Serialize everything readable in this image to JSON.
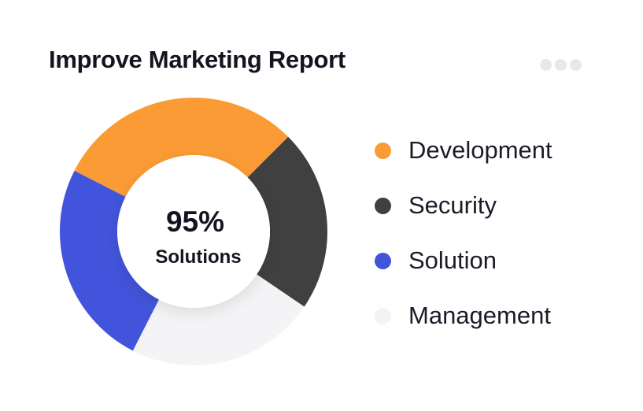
{
  "card": {
    "title": "Improve Marketing Report",
    "menu_icon": "more-horizontal-icon"
  },
  "chart_data": {
    "type": "donut",
    "title": "Improve Marketing Report",
    "center_value": "95%",
    "center_label": "Solutions",
    "legend_placement": "right",
    "series": [
      {
        "name": "Development",
        "value": 30,
        "color": "#FA9B35"
      },
      {
        "name": "Security",
        "value": 22,
        "color": "#404040"
      },
      {
        "name": "Management",
        "value": 23,
        "color": "#F4F4F6"
      },
      {
        "name": "Solution",
        "value": 25,
        "color": "#4254DB"
      }
    ]
  },
  "legend": {
    "items": [
      {
        "label": "Development",
        "color": "#FA9B35"
      },
      {
        "label": "Security",
        "color": "#404040"
      },
      {
        "label": "Solution",
        "color": "#4254DB"
      },
      {
        "label": "Management",
        "color": "#F4F4F6"
      }
    ]
  }
}
